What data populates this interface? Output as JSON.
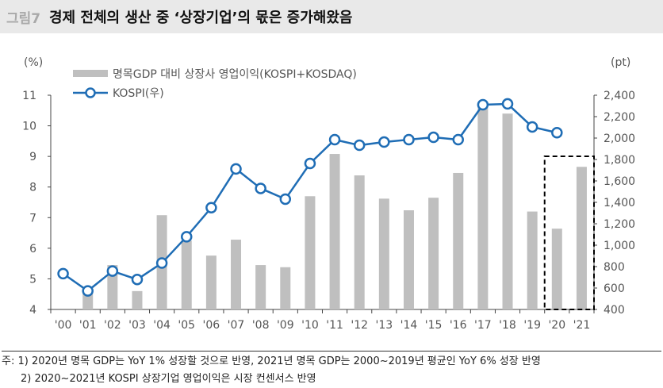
{
  "header": {
    "figure_label": "그림7",
    "title": "경제 전체의 생산 중 ‘상장기업’의 몫은 증가해왔음"
  },
  "chart_data": {
    "type": "bar+line",
    "categories": [
      "'00",
      "'01",
      "'02",
      "'03",
      "'04",
      "'05",
      "'06",
      "'07",
      "'08",
      "'09",
      "'10",
      "'11",
      "'12",
      "'13",
      "'14",
      "'15",
      "'16",
      "'17",
      "'18",
      "'19",
      "'20",
      "'21"
    ],
    "series": [
      {
        "name": "명목GDP 대비 상장사 영업이익(KOSPI+KOSDAQ)",
        "type": "bar",
        "axis": "left",
        "color": "#bfbfbf",
        "values": [
          null,
          4.6,
          5.45,
          4.6,
          7.08,
          6.25,
          5.76,
          6.28,
          5.45,
          5.38,
          7.7,
          9.08,
          8.38,
          7.62,
          7.24,
          7.65,
          8.46,
          10.6,
          10.4,
          7.2,
          6.64,
          8.66
        ]
      },
      {
        "name": "KOSPI(우)",
        "type": "line",
        "axis": "right",
        "color": "#1f6db5",
        "values": [
          734,
          573,
          758,
          680,
          833,
          1079,
          1350,
          1712,
          1530,
          1430,
          1763,
          1985,
          1933,
          1963,
          1985,
          2007,
          1985,
          2311,
          2319,
          2104,
          2050,
          null
        ]
      }
    ],
    "left_axis": {
      "unit": "(%)",
      "range": [
        4,
        11
      ],
      "ticks": [
        "4",
        "5",
        "6",
        "7",
        "8",
        "9",
        "10",
        "11"
      ]
    },
    "right_axis": {
      "unit": "(pt)",
      "range": [
        400,
        2400
      ],
      "ticks": [
        "400",
        "600",
        "800",
        "1,000",
        "1,200",
        "1,400",
        "1,600",
        "1,800",
        "2,000",
        "2,200",
        "2,400"
      ]
    },
    "highlight": {
      "categories": [
        "'20",
        "'21"
      ],
      "style": "dashed-box"
    },
    "legend": "top-left",
    "grid": false
  },
  "notes": [
    "주: 1) 2020년 명목 GDP는 YoY 1% 성장할 것으로 반영, 2021년 명목 GDP는 2000~2019년 평균인 YoY 6% 성장 반영",
    "2) 2020~2021년 KOSPI 상장기업 영업이익은 시장 컨센서스 반영"
  ]
}
